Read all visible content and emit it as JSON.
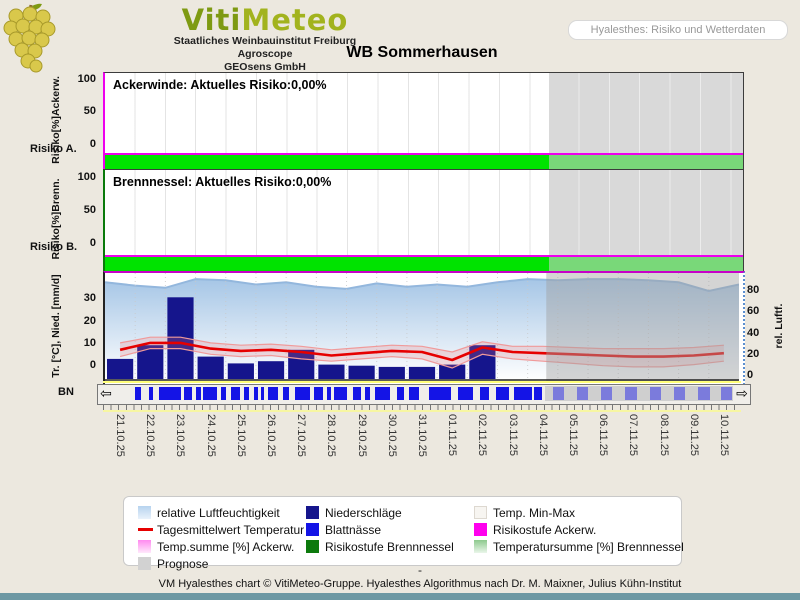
{
  "header": {
    "logo_word_part1": "Viti",
    "logo_word_part2": "Meteo",
    "org_lines": [
      "Staatliches Weinbauinstitut Freiburg",
      "Agroscope",
      "GEOsens GmbH"
    ],
    "mode_button_label": "Hyalesthes: Risiko und Wetterdaten"
  },
  "title": "WB Sommerhausen",
  "colors": {
    "page_background": "#ece8df",
    "risk_band_green": "#00e300",
    "risk_band_green_forecast": "#79d879",
    "risk_zero_line_magenta": "#ee00ee",
    "precipitation_navy": "#15158c",
    "leaf_wetness_blue": "#1414e6",
    "leaf_wetness_forecast_blue": "#7b7bdc",
    "temperature_red": "#e60000",
    "humidity_blue": "#a6c6e6",
    "forecast_gray": "#d9d9d9",
    "footer_bar_teal": "#6d98a3"
  },
  "chart_data": [
    {
      "type": "area",
      "id": "ackerwinde-risk",
      "panel_title": "Ackerwinde: Aktuelles Risiko:0,00%",
      "current_risk_percent": "0,00%",
      "ylabel": "Risiko[%]Ackerw.",
      "row_label": "Risiko A.",
      "yticks": [
        100,
        50,
        0
      ],
      "ylim": [
        0,
        100
      ],
      "risk_level_series_constant": 0,
      "risk_band": "green"
    },
    {
      "type": "area",
      "id": "brennnessel-risk",
      "panel_title": "Brennnessel: Aktuelles Risiko:0,00%",
      "current_risk_percent": "0,00%",
      "ylabel": "Risiko[%]Brenn.",
      "row_label": "Risiko B.",
      "yticks": [
        100,
        50,
        0
      ],
      "ylim": [
        0,
        100
      ],
      "risk_level_series_constant": 0,
      "risk_band": "green"
    },
    {
      "type": "mixed",
      "id": "weather",
      "ylabel_left": "Tr. [°C], Nied. [mm/d]",
      "ylabel_right": "rel. Luftf.",
      "yticks_left": [
        30,
        20,
        10,
        0
      ],
      "yticks_right": [
        80,
        60,
        40,
        20,
        0
      ],
      "ylim_left": [
        -5,
        35
      ],
      "ylim_right": [
        0,
        100
      ],
      "grid": "daily dotted vertical",
      "categories": [
        "21.10.25",
        "22.10.25",
        "23.10.25",
        "24.10.25",
        "25.10.25",
        "26.10.25",
        "27.10.25",
        "28.10.25",
        "29.10.25",
        "30.10.25",
        "31.10.25",
        "01.11.25",
        "02.11.25",
        "03.11.25",
        "04.11.25",
        "05.11.25",
        "06.11.25",
        "07.11.25",
        "08.11.25",
        "09.11.25",
        "10.11.25"
      ],
      "series": [
        {
          "name": "relative Luftfeuchtigkeit",
          "type": "area",
          "axis": "right",
          "boundary_values": [
            88,
            85,
            83,
            91,
            90,
            86,
            88,
            84,
            82,
            87,
            84,
            86,
            84,
            88,
            91,
            90,
            91,
            91,
            90,
            88,
            80,
            86
          ]
        },
        {
          "name": "Tagesmittelwert Temperatur",
          "type": "line",
          "axis": "left",
          "values": [
            8,
            11,
            11,
            8.5,
            7.5,
            8,
            7,
            5.5,
            6.5,
            7.5,
            7,
            3.5,
            9,
            7,
            6.5,
            6,
            5.5,
            5,
            5,
            5.5,
            6.5
          ]
        },
        {
          "name": "Temp. Max",
          "type": "band-high",
          "axis": "left",
          "values": [
            11,
            13.5,
            13.5,
            11,
            10,
            10.5,
            9.5,
            8,
            9,
            10,
            9.5,
            7,
            11.5,
            9.5,
            9.5,
            9,
            8.5,
            8.5,
            8.5,
            9,
            10
          ]
        },
        {
          "name": "Temp. Min",
          "type": "band-low",
          "axis": "left",
          "values": [
            5,
            8.5,
            8.5,
            6,
            5,
            5.5,
            4,
            3,
            4,
            5,
            4,
            0,
            6,
            4,
            3,
            2,
            1,
            0.5,
            0.5,
            1.5,
            3
          ]
        },
        {
          "name": "Niederschläge",
          "type": "bar",
          "axis": "left",
          "values": [
            4,
            10,
            31,
            5,
            2,
            3,
            8,
            1.5,
            1,
            0.5,
            0.5,
            1.5,
            10,
            0,
            0,
            0,
            0,
            0,
            0,
            0,
            0
          ]
        }
      ],
      "leaf_wetness_label": "BN",
      "leaf_wetness_segments": [
        [
          0.033,
          0.009
        ],
        [
          0.055,
          0.006
        ],
        [
          0.071,
          0.035
        ],
        [
          0.112,
          0.013
        ],
        [
          0.131,
          0.008
        ],
        [
          0.143,
          0.022
        ],
        [
          0.171,
          0.009
        ],
        [
          0.187,
          0.016
        ],
        [
          0.209,
          0.008
        ],
        [
          0.225,
          0.006
        ],
        [
          0.236,
          0.005
        ],
        [
          0.247,
          0.016
        ],
        [
          0.272,
          0.009
        ],
        [
          0.291,
          0.025
        ],
        [
          0.322,
          0.014
        ],
        [
          0.343,
          0.006
        ],
        [
          0.354,
          0.022
        ],
        [
          0.385,
          0.013
        ],
        [
          0.404,
          0.008
        ],
        [
          0.42,
          0.025
        ],
        [
          0.456,
          0.011
        ],
        [
          0.476,
          0.016
        ],
        [
          0.508,
          0.035
        ],
        [
          0.555,
          0.025
        ],
        [
          0.59,
          0.016
        ],
        [
          0.616,
          0.022
        ],
        [
          0.646,
          0.028
        ],
        [
          0.678,
          0.013
        ],
        [
          0.708,
          0.019
        ],
        [
          0.747,
          0.019
        ],
        [
          0.786,
          0.019
        ],
        [
          0.825,
          0.019
        ],
        [
          0.865,
          0.019
        ],
        [
          0.904,
          0.019
        ],
        [
          0.943,
          0.019
        ],
        [
          0.981,
          0.017
        ]
      ],
      "forecast_start_date": "04.11.25",
      "forecast_start_fraction": 0.696,
      "legend_position": "bottom"
    }
  ],
  "scrollbar": {
    "left_arrow": "⇦",
    "right_arrow": "⇨"
  },
  "legend": {
    "columns": [
      [
        {
          "swatch": "humidity",
          "label": "relative Luftfeuchtigkeit"
        },
        {
          "swatch": "redline",
          "label": "Tagesmittelwert Temperatur"
        },
        {
          "swatch": "pink",
          "label": "Temp.summe [%] Ackerw."
        },
        {
          "swatch": "gray",
          "label": "Prognose"
        }
      ],
      [
        {
          "swatch": "navy",
          "label": "Niederschläge"
        },
        {
          "swatch": "blue",
          "label": "Blattnässe"
        },
        {
          "swatch": "dgreen",
          "label": "Risikostufe Brennnessel"
        }
      ],
      [
        {
          "swatch": "minmax",
          "label": "Temp. Min-Max"
        },
        {
          "swatch": "magenta",
          "label": "Risikostufe Ackerw."
        },
        {
          "swatch": "lgreen",
          "label": "Temperatursumme [%] Brennnessel"
        }
      ]
    ]
  },
  "footer": {
    "dash": "-",
    "credit": "VM Hyalesthes chart © VitiMeteo-Gruppe. Hyalesthes Algorithmus nach Dr. M. Maixner, Julius Kühn-Institut"
  }
}
